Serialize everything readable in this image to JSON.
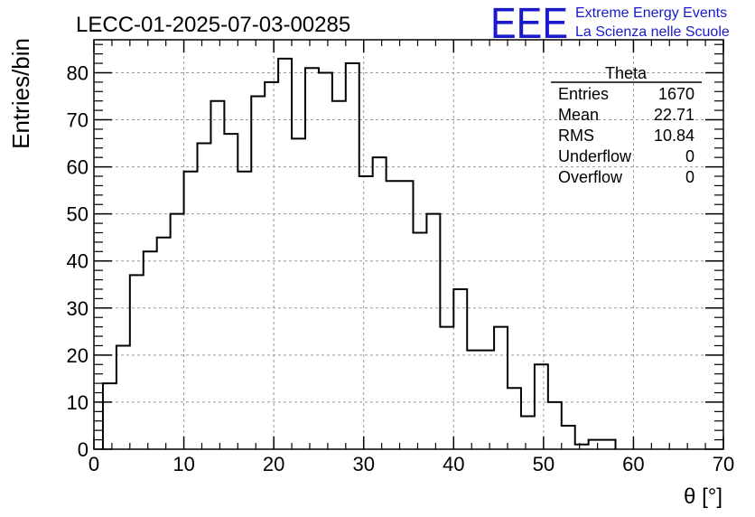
{
  "header": {
    "run_title": "LECC-01-2025-07-03-00285",
    "logo_text": "EEE",
    "logo_line1": "Extreme Energy Events",
    "logo_line2": "La Scienza nelle Scuole"
  },
  "stats_box": {
    "title": "Theta",
    "rows": [
      {
        "label": "Entries",
        "value": "1670"
      },
      {
        "label": "Mean",
        "value": "22.71"
      },
      {
        "label": "RMS",
        "value": "10.84"
      },
      {
        "label": "Underflow",
        "value": "0"
      },
      {
        "label": "Overflow",
        "value": "0"
      }
    ]
  },
  "colors": {
    "logo": "#1a1acc",
    "line": "#000000",
    "grid": "#9a9a9a"
  },
  "chart_data": {
    "type": "bar",
    "style": "step-histogram",
    "title": "LECC-01-2025-07-03-00285",
    "xlabel": "θ [°]",
    "ylabel": "Entries/bin",
    "xlim": [
      0,
      70
    ],
    "ylim": [
      0,
      87
    ],
    "bin_width": 1.5,
    "x_start": 1,
    "values": [
      14,
      22,
      37,
      42,
      45,
      50,
      59,
      65,
      74,
      67,
      59,
      75,
      78,
      83,
      66,
      81,
      80,
      74,
      82,
      58,
      62,
      57,
      57,
      46,
      50,
      26,
      34,
      21,
      21,
      26,
      13,
      7,
      18,
      10,
      5,
      1,
      2,
      2
    ],
    "x_ticks": [
      0,
      10,
      20,
      30,
      40,
      50,
      60,
      70
    ],
    "y_ticks": [
      0,
      10,
      20,
      30,
      40,
      50,
      60,
      70,
      80
    ],
    "grid": true,
    "legend": "top-right"
  }
}
